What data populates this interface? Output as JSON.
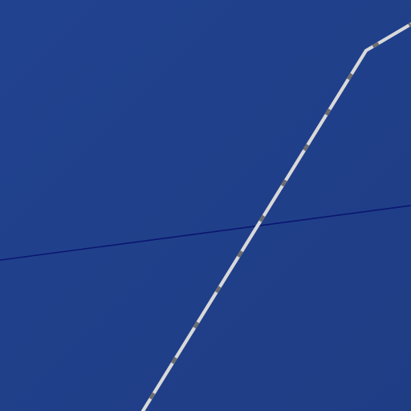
{
  "map": {
    "colors": {
      "water": "#203f8a",
      "water_shade": "#1e3d86",
      "boundary_line": "#0a1670",
      "rail_base": "#d8d8d8",
      "rail_dash": "#6f6f6f"
    },
    "features": [
      {
        "type": "water-area"
      },
      {
        "type": "boundary-line"
      },
      {
        "type": "railway"
      }
    ]
  }
}
